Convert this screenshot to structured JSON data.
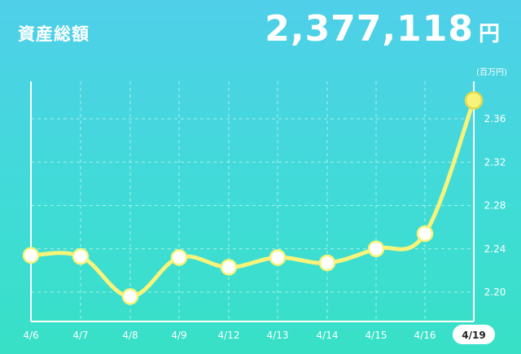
{
  "header": {
    "label": "資産総額",
    "total_value": "2,377,118",
    "total_unit": "円"
  },
  "chart_data": {
    "type": "line",
    "unit_label": "(百万円)",
    "categories": [
      "4/6",
      "4/7",
      "4/8",
      "4/9",
      "4/12",
      "4/13",
      "4/14",
      "4/15",
      "4/16",
      "4/19"
    ],
    "values": [
      2.234,
      2.233,
      2.196,
      2.232,
      2.223,
      2.232,
      2.227,
      2.24,
      2.254,
      2.377
    ],
    "y_ticks": [
      "2.20",
      "2.24",
      "2.28",
      "2.32",
      "2.36"
    ],
    "ylim": [
      2.2,
      2.36
    ],
    "selected_category": "4/19",
    "grid": true,
    "colors": {
      "line": "#f8f37a",
      "marker_fill": "#ffffff",
      "selected_marker_fill": "#f8f37a",
      "grid": "#ffffff",
      "text": "#ffffff"
    }
  }
}
